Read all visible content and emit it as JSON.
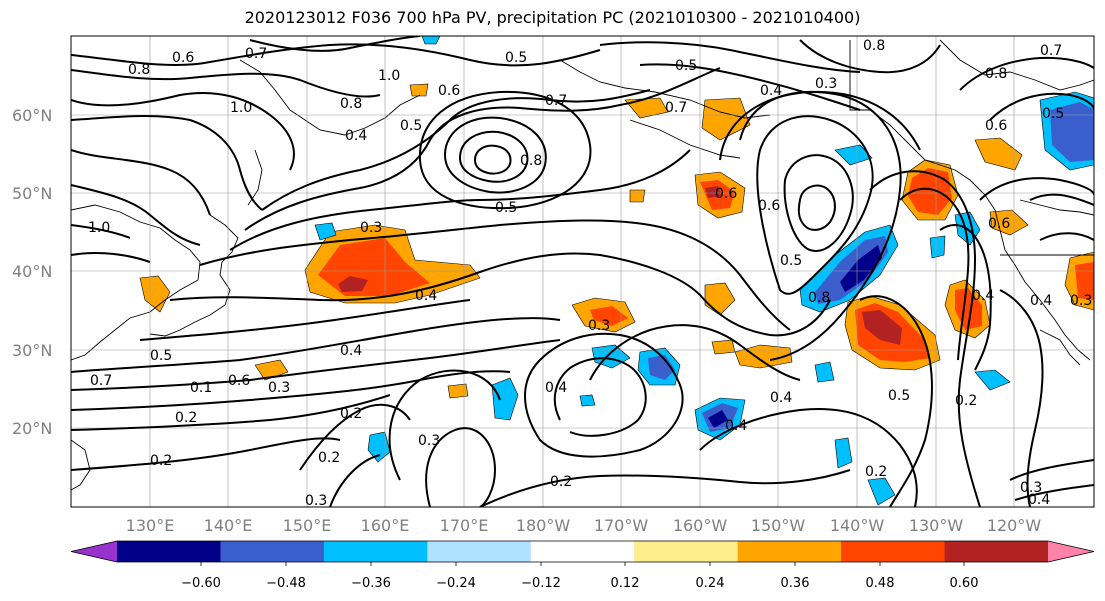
{
  "title": "2020123012 F036 700 hPa PV, precipitation PC (2021010300 - 2021010400)",
  "lat_labels": [
    "60°N",
    "50°N",
    "40°N",
    "30°N",
    "20°N"
  ],
  "lon_labels": [
    "130°E",
    "140°E",
    "150°E",
    "160°E",
    "170°E",
    "180°W",
    "170°W",
    "160°W",
    "150°W",
    "140°W",
    "130°W",
    "120°W"
  ],
  "contour_labels": [
    "0.8",
    "0.6",
    "0.7",
    "1.0",
    "0.8",
    "0.6",
    "0.4",
    "0.5",
    "0.7",
    "0.5",
    "0.7",
    "0.6",
    "0.3",
    "0.5",
    "0.8",
    "0.3",
    "0.8",
    "1.0",
    "0.4",
    "0.7",
    "0.5",
    "0.8",
    "0.6",
    "0.5",
    "1.0",
    "0.3",
    "0.4",
    "0.4",
    "0.8",
    "0.6",
    "0.5",
    "0.6",
    "0.3",
    "0.4",
    "0.4",
    "0.5",
    "0.7",
    "0.6",
    "0.3",
    "0.1",
    "0.2",
    "0.4",
    "0.2",
    "0.2",
    "0.3",
    "0.2",
    "0.4",
    "0.2",
    "0.4",
    "0.3",
    "0.5",
    "0.2",
    "0.2",
    "0.3",
    "0.4"
  ],
  "colorbar": {
    "tick_labels": [
      "−0.60",
      "−0.48",
      "−0.36",
      "−0.24",
      "−0.12",
      "0.12",
      "0.24",
      "0.36",
      "0.48",
      "0.60"
    ],
    "colors": [
      "#9932cc",
      "#00008b",
      "#3a5fcd",
      "#00bfff",
      "#b0e2ff",
      "#ffffff",
      "#ffec8b",
      "#ffa500",
      "#ff4500",
      "#b22222",
      "#ff82ab"
    ]
  }
}
